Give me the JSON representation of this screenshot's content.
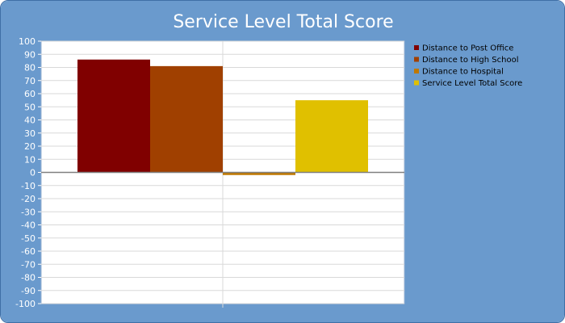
{
  "chart_data": {
    "type": "bar",
    "title": "Service Level Total Score",
    "xlabel": "",
    "ylabel": "",
    "ylim": [
      -100,
      100
    ],
    "ytick_step": 10,
    "grid": true,
    "legend_position": "right",
    "series": [
      {
        "name": "Distance to Post Office",
        "value": 86,
        "color": "#800000"
      },
      {
        "name": "Distance to High School",
        "value": 81,
        "color": "#a04000"
      },
      {
        "name": "Distance to Hospital",
        "value": -2,
        "color": "#c07800"
      },
      {
        "name": "Service Level Total Score",
        "value": 55,
        "color": "#e0c000"
      }
    ]
  },
  "colors": {
    "background": "#6a9acd",
    "plot_background": "#ffffff",
    "grid": "#d9d9d9",
    "zero_line": "#808080",
    "title_text": "#ffffff"
  }
}
